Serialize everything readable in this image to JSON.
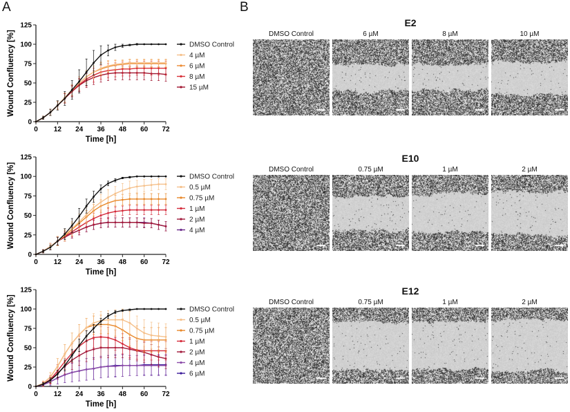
{
  "panel_labels": {
    "a": "A",
    "b": "B"
  },
  "chart_data": [
    {
      "type": "line",
      "xlabel": "Time [h]",
      "ylabel": "Wound Confluency [%]",
      "xlim": [
        0,
        72
      ],
      "ylim": [
        0,
        125
      ],
      "xticks": [
        "0",
        "12",
        "24",
        "36",
        "48",
        "60",
        "72"
      ],
      "yticks": [
        "0",
        "25",
        "50",
        "75",
        "100",
        "125"
      ],
      "grid": false,
      "legend": "right",
      "error_bars": true,
      "x": [
        0,
        4,
        8,
        12,
        16,
        20,
        24,
        28,
        32,
        36,
        40,
        44,
        48,
        52,
        56,
        60,
        64,
        68,
        72
      ],
      "series": [
        {
          "name": "DMSO Control",
          "color": "#111111",
          "values": [
            0,
            5,
            12,
            21,
            30,
            41,
            52,
            64,
            76,
            86,
            92,
            96,
            98,
            99,
            100,
            100,
            100,
            100,
            100
          ],
          "error": [
            0,
            2,
            4,
            6,
            9,
            12,
            15,
            17,
            16,
            12,
            7,
            4,
            2,
            1,
            1,
            0,
            0,
            0,
            0
          ]
        },
        {
          "name": "4 µM",
          "color": "#f5c08a",
          "values": [
            0,
            5,
            12,
            21,
            31,
            41,
            50,
            58,
            64,
            69,
            72,
            74,
            75,
            76,
            76,
            76,
            76,
            76,
            76
          ],
          "error": [
            0,
            2,
            4,
            5,
            6,
            7,
            8,
            8,
            8,
            8,
            7,
            6,
            5,
            5,
            5,
            5,
            5,
            5,
            5
          ]
        },
        {
          "name": "6 µM",
          "color": "#ec8a32",
          "values": [
            0,
            5,
            12,
            21,
            31,
            41,
            50,
            58,
            64,
            68,
            71,
            73,
            74,
            75,
            75,
            75,
            75,
            75,
            75
          ],
          "error": [
            0,
            2,
            4,
            5,
            6,
            7,
            8,
            8,
            8,
            8,
            7,
            6,
            5,
            5,
            5,
            5,
            5,
            5,
            5
          ]
        },
        {
          "name": "8 µM",
          "color": "#d83038",
          "values": [
            0,
            5,
            12,
            21,
            30,
            40,
            48,
            55,
            60,
            64,
            66,
            67,
            68,
            68,
            69,
            69,
            69,
            69,
            69
          ],
          "error": [
            0,
            2,
            4,
            5,
            6,
            7,
            8,
            9,
            9,
            9,
            9,
            9,
            9,
            9,
            9,
            9,
            9,
            9,
            9
          ]
        },
        {
          "name": "15 µM",
          "color": "#a0142e",
          "values": [
            0,
            5,
            12,
            21,
            30,
            39,
            47,
            53,
            57,
            60,
            62,
            63,
            63,
            63,
            63,
            63,
            62,
            62,
            61
          ],
          "error": [
            0,
            2,
            4,
            5,
            6,
            7,
            8,
            9,
            9,
            9,
            9,
            9,
            9,
            9,
            9,
            9,
            9,
            9,
            9
          ]
        }
      ]
    },
    {
      "type": "line",
      "xlabel": "Time [h]",
      "ylabel": "Wound Confluency [%]",
      "xlim": [
        0,
        72
      ],
      "ylim": [
        0,
        125
      ],
      "xticks": [
        "0",
        "12",
        "24",
        "36",
        "48",
        "60",
        "72"
      ],
      "yticks": [
        "0",
        "25",
        "50",
        "75",
        "100",
        "125"
      ],
      "grid": false,
      "legend": "right",
      "error_bars": true,
      "x": [
        0,
        4,
        8,
        12,
        16,
        20,
        24,
        28,
        32,
        36,
        40,
        44,
        48,
        52,
        56,
        60,
        64,
        68,
        72
      ],
      "series": [
        {
          "name": "DMSO Control",
          "color": "#111111",
          "values": [
            0,
            4,
            9,
            17,
            26,
            37,
            49,
            62,
            74,
            84,
            91,
            95,
            98,
            99,
            100,
            100,
            100,
            100,
            100
          ],
          "error": [
            0,
            2,
            3,
            5,
            7,
            9,
            10,
            9,
            7,
            5,
            3,
            2,
            1,
            1,
            0,
            0,
            0,
            0,
            0
          ]
        },
        {
          "name": "0.5 µM",
          "color": "#f5c08a",
          "values": [
            0,
            4,
            10,
            17,
            25,
            33,
            42,
            51,
            60,
            67,
            73,
            78,
            82,
            85,
            87,
            88,
            89,
            90,
            90
          ],
          "error": [
            0,
            2,
            4,
            6,
            8,
            9,
            10,
            10,
            10,
            10,
            10,
            9,
            9,
            9,
            8,
            8,
            7,
            7,
            7
          ]
        },
        {
          "name": "0.75 µM",
          "color": "#e8882a",
          "values": [
            0,
            4,
            10,
            17,
            24,
            32,
            40,
            48,
            56,
            62,
            66,
            69,
            70,
            71,
            71,
            71,
            71,
            71,
            71
          ],
          "error": [
            0,
            2,
            4,
            6,
            7,
            8,
            8,
            8,
            8,
            8,
            7,
            7,
            7,
            7,
            7,
            7,
            7,
            7,
            7
          ]
        },
        {
          "name": "1 µM",
          "color": "#d42a3a",
          "values": [
            0,
            4,
            10,
            17,
            23,
            29,
            35,
            41,
            46,
            50,
            53,
            55,
            56,
            57,
            57,
            57,
            57,
            57,
            57
          ],
          "error": [
            0,
            2,
            4,
            5,
            6,
            6,
            7,
            7,
            7,
            7,
            7,
            6,
            6,
            6,
            6,
            6,
            6,
            6,
            6
          ]
        },
        {
          "name": "2 µM",
          "color": "#a0183a",
          "values": [
            0,
            4,
            10,
            17,
            22,
            27,
            31,
            35,
            38,
            40,
            41,
            41,
            41,
            41,
            41,
            40,
            40,
            38,
            36
          ],
          "error": [
            0,
            2,
            4,
            5,
            5,
            6,
            6,
            6,
            6,
            6,
            6,
            6,
            6,
            6,
            6,
            6,
            6,
            6,
            6
          ]
        },
        {
          "name": "4 µM",
          "color": "#6a2a8a",
          "values": [
            0,
            4,
            10,
            17,
            22,
            27,
            31,
            35,
            38,
            40,
            41,
            41,
            41,
            41,
            41,
            41,
            40,
            38,
            36
          ],
          "error": [
            0,
            2,
            4,
            5,
            5,
            6,
            6,
            6,
            6,
            6,
            6,
            6,
            6,
            6,
            6,
            6,
            6,
            6,
            6
          ]
        }
      ]
    },
    {
      "type": "line",
      "xlabel": "Time [h]",
      "ylabel": "Wound Confluency [%]",
      "xlim": [
        0,
        72
      ],
      "ylim": [
        0,
        125
      ],
      "xticks": [
        "0",
        "12",
        "24",
        "36",
        "48",
        "60",
        "72"
      ],
      "yticks": [
        "0",
        "25",
        "50",
        "75",
        "100",
        "125"
      ],
      "grid": false,
      "legend": "right",
      "error_bars": true,
      "x": [
        0,
        4,
        8,
        12,
        16,
        20,
        24,
        28,
        32,
        36,
        40,
        44,
        48,
        52,
        56,
        60,
        64,
        68,
        72
      ],
      "series": [
        {
          "name": "DMSO Control",
          "color": "#111111",
          "values": [
            0,
            3,
            8,
            16,
            27,
            40,
            53,
            65,
            75,
            84,
            91,
            96,
            98,
            99,
            100,
            100,
            100,
            100,
            100
          ],
          "error": [
            0,
            2,
            3,
            5,
            7,
            8,
            8,
            7,
            5,
            4,
            3,
            2,
            1,
            1,
            0,
            0,
            0,
            0,
            0
          ]
        },
        {
          "name": "0.5 µM",
          "color": "#f5c08a",
          "values": [
            0,
            4,
            12,
            26,
            42,
            56,
            67,
            76,
            82,
            85,
            86,
            86,
            86,
            82,
            75,
            69,
            66,
            65,
            64
          ],
          "error": [
            0,
            3,
            6,
            10,
            12,
            13,
            13,
            12,
            12,
            12,
            12,
            13,
            14,
            15,
            16,
            17,
            17,
            17,
            17
          ]
        },
        {
          "name": "0.75 µM",
          "color": "#e8882a",
          "values": [
            0,
            4,
            12,
            26,
            42,
            56,
            67,
            76,
            79,
            80,
            80,
            78,
            73,
            67,
            62,
            60,
            60,
            60,
            60
          ],
          "error": [
            0,
            3,
            6,
            10,
            12,
            13,
            13,
            12,
            12,
            12,
            12,
            13,
            14,
            15,
            16,
            16,
            16,
            16,
            16
          ]
        },
        {
          "name": "1 µM",
          "color": "#d42a3a",
          "values": [
            0,
            3,
            9,
            20,
            32,
            43,
            52,
            59,
            63,
            64,
            63,
            60,
            55,
            50,
            47,
            46,
            46,
            46,
            46
          ],
          "error": [
            0,
            3,
            5,
            8,
            10,
            12,
            13,
            13,
            13,
            13,
            13,
            13,
            13,
            13,
            12,
            12,
            12,
            12,
            12
          ]
        },
        {
          "name": "2 µM",
          "color": "#a0183a",
          "values": [
            0,
            3,
            8,
            17,
            26,
            34,
            40,
            45,
            48,
            50,
            50,
            50,
            50,
            48,
            46,
            44,
            41,
            38,
            36
          ],
          "error": [
            0,
            3,
            5,
            8,
            10,
            12,
            13,
            13,
            13,
            13,
            13,
            13,
            13,
            13,
            13,
            13,
            13,
            13,
            13
          ]
        },
        {
          "name": "4 µM",
          "color": "#8a4aa8",
          "values": [
            0,
            2,
            6,
            11,
            15,
            18,
            20,
            22,
            23,
            25,
            26,
            26,
            27,
            27,
            27,
            27,
            27,
            27,
            27
          ],
          "error": [
            0,
            2,
            5,
            8,
            10,
            12,
            13,
            14,
            14,
            14,
            14,
            14,
            14,
            13,
            13,
            13,
            13,
            13,
            13
          ]
        },
        {
          "name": "6 µM",
          "color": "#3a1a9a",
          "values": [
            0,
            2,
            6,
            11,
            15,
            18,
            20,
            22,
            23,
            25,
            26,
            27,
            27,
            27,
            27,
            28,
            28,
            28,
            28
          ],
          "error": [
            0,
            2,
            5,
            8,
            10,
            12,
            13,
            14,
            14,
            14,
            14,
            14,
            14,
            13,
            13,
            13,
            13,
            13,
            13
          ]
        }
      ]
    }
  ],
  "micrographs": [
    {
      "title": "E2",
      "columns": [
        "DMSO Control",
        "6 µM",
        "8 µM",
        "10 µM"
      ]
    },
    {
      "title": "E10",
      "columns": [
        "DMSO Control",
        "0.75 µM",
        "1 µM",
        "2 µM"
      ]
    },
    {
      "title": "E12",
      "columns": [
        "DMSO Control",
        "0.75 µM",
        "1 µM",
        "2 µM"
      ]
    }
  ]
}
